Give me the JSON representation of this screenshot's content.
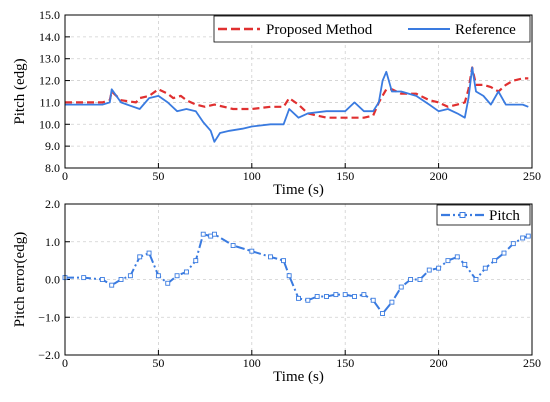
{
  "colors": {
    "proposed": "#e03030",
    "reference": "#3a7be0",
    "error": "#3a7be0",
    "grid": "#cfcfcf"
  },
  "chart_data": [
    {
      "type": "line",
      "xlabel": "Time (s)",
      "ylabel": "Pitch (edg)",
      "xlim": [
        0,
        250
      ],
      "ylim": [
        8.0,
        15.0
      ],
      "xticks": [
        "0",
        "50",
        "100",
        "150",
        "200",
        "250"
      ],
      "yticks": [
        "8.0",
        "9.0",
        "10.0",
        "11.0",
        "12.0",
        "13.0",
        "14.0",
        "15.0"
      ],
      "grid": true,
      "legend_position": "top-right",
      "series": [
        {
          "name": "Proposed Method",
          "style": "dashed",
          "x": [
            0,
            10,
            20,
            24,
            25,
            30,
            38,
            40,
            45,
            50,
            55,
            58,
            62,
            65,
            70,
            75,
            80,
            90,
            100,
            110,
            117,
            120,
            125,
            130,
            140,
            150,
            160,
            165,
            168,
            172,
            175,
            180,
            188,
            195,
            200,
            205,
            210,
            214,
            216,
            218,
            220,
            224,
            228,
            232,
            236,
            240,
            245,
            248
          ],
          "y": [
            11.0,
            11.0,
            11.0,
            11.1,
            11.5,
            11.1,
            11.0,
            11.2,
            11.3,
            11.6,
            11.4,
            11.2,
            11.3,
            11.1,
            10.9,
            10.8,
            10.9,
            10.7,
            10.7,
            10.8,
            10.8,
            11.2,
            10.9,
            10.5,
            10.3,
            10.3,
            10.3,
            10.4,
            11.0,
            11.6,
            11.6,
            11.4,
            11.4,
            11.1,
            11.0,
            10.8,
            10.9,
            11.0,
            11.6,
            12.6,
            11.8,
            11.8,
            11.7,
            11.5,
            11.8,
            12.0,
            12.1,
            12.1
          ]
        },
        {
          "name": "Reference",
          "style": "solid",
          "x": [
            0,
            10,
            20,
            24,
            25,
            30,
            40,
            45,
            50,
            55,
            60,
            65,
            70,
            74,
            78,
            80,
            83,
            88,
            95,
            100,
            110,
            117,
            120,
            125,
            130,
            140,
            150,
            155,
            160,
            165,
            168,
            170,
            172,
            175,
            180,
            188,
            195,
            200,
            205,
            210,
            214,
            216,
            218,
            220,
            224,
            228,
            232,
            236,
            240,
            245,
            248
          ],
          "y": [
            10.9,
            10.9,
            10.9,
            11.0,
            11.6,
            11.0,
            10.7,
            11.2,
            11.3,
            11.0,
            10.6,
            10.7,
            10.6,
            10.1,
            9.7,
            9.2,
            9.6,
            9.7,
            9.8,
            9.9,
            10.0,
            10.0,
            10.7,
            10.3,
            10.5,
            10.6,
            10.6,
            11.0,
            10.6,
            10.6,
            11.0,
            12.0,
            12.4,
            11.5,
            11.5,
            11.3,
            10.9,
            10.6,
            10.7,
            10.5,
            10.3,
            11.2,
            12.6,
            11.5,
            11.3,
            10.9,
            11.5,
            10.9,
            10.9,
            10.9,
            10.8
          ]
        }
      ]
    },
    {
      "type": "line",
      "xlabel": "Time (s)",
      "ylabel": "Pitch error(edg)",
      "xlim": [
        0,
        250
      ],
      "ylim": [
        -2.0,
        2.0
      ],
      "xticks": [
        "0",
        "50",
        "100",
        "150",
        "200",
        "250"
      ],
      "yticks": [
        "−2.0",
        "−1.0",
        "0.0",
        "1.0",
        "2.0"
      ],
      "grid": true,
      "legend_position": "top-right",
      "series": [
        {
          "name": "Pitch",
          "style": "dash-dot with markers",
          "x": [
            0,
            10,
            20,
            25,
            30,
            35,
            40,
            45,
            50,
            55,
            60,
            65,
            70,
            74,
            78,
            80,
            90,
            100,
            110,
            117,
            120,
            125,
            130,
            135,
            140,
            145,
            150,
            155,
            160,
            165,
            170,
            175,
            180,
            185,
            190,
            195,
            200,
            205,
            210,
            214,
            220,
            225,
            230,
            235,
            240,
            245,
            248
          ],
          "y": [
            0.05,
            0.05,
            0.0,
            -0.15,
            0.0,
            0.1,
            0.6,
            0.7,
            0.1,
            -0.1,
            0.1,
            0.2,
            0.5,
            1.2,
            1.15,
            1.2,
            0.9,
            0.75,
            0.6,
            0.5,
            0.1,
            -0.5,
            -0.55,
            -0.45,
            -0.45,
            -0.4,
            -0.4,
            -0.45,
            -0.4,
            -0.55,
            -0.9,
            -0.6,
            -0.2,
            0.0,
            0.0,
            0.25,
            0.3,
            0.5,
            0.6,
            0.4,
            0.0,
            0.3,
            0.5,
            0.7,
            0.95,
            1.1,
            1.15
          ]
        }
      ]
    }
  ]
}
